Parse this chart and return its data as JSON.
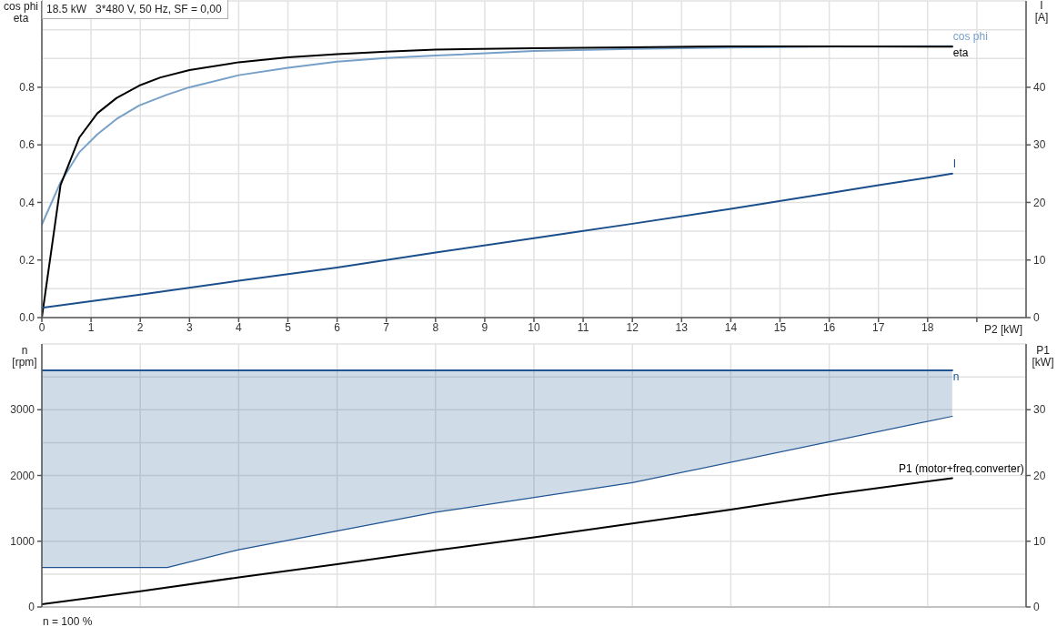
{
  "chart_data": [
    {
      "type": "line",
      "title": "18.5 kW   3*480 V, 50 Hz, SF = 0,00",
      "xlabel": "P2 [kW]",
      "ylabel": "cos phi\neta",
      "y2label": "I\n[A]",
      "xlim": [
        0,
        20
      ],
      "xticks": [
        0,
        1,
        2,
        3,
        4,
        5,
        6,
        7,
        8,
        9,
        10,
        11,
        12,
        13,
        14,
        15,
        16,
        17,
        18,
        {
          "value": 19,
          "label": null
        }
      ],
      "ylim": [
        0,
        1.1
      ],
      "yticks": [
        {
          "value": 0,
          "label": "0.0"
        },
        {
          "value": 0.1,
          "label": null
        },
        0.2,
        {
          "value": 0.3,
          "label": null
        },
        0.4,
        {
          "value": 0.5,
          "label": null
        },
        0.6,
        {
          "value": 0.7,
          "label": null
        },
        0.8,
        {
          "value": 0.9,
          "label": null
        },
        {
          "value": 1.0,
          "label": null
        }
      ],
      "y2lim": [
        0,
        55
      ],
      "y2ticks": [
        0,
        10,
        20,
        30,
        40
      ],
      "grid": true,
      "series": [
        {
          "name": "cos phi",
          "color": "#76a0c8",
          "x": [
            0,
            0.38,
            0.76,
            1.13,
            1.52,
            1.98,
            2.54,
            3,
            4,
            5,
            6,
            7,
            8,
            10,
            12,
            14,
            16,
            18.5
          ],
          "values": [
            0.323,
            0.47,
            0.574,
            0.637,
            0.69,
            0.737,
            0.774,
            0.8,
            0.842,
            0.868,
            0.889,
            0.902,
            0.91,
            0.926,
            0.933,
            0.938,
            0.941,
            0.943
          ]
        },
        {
          "name": "eta",
          "color": "#000000",
          "x": [
            0,
            0.38,
            0.76,
            1.13,
            1.52,
            1.98,
            2.41,
            3,
            4,
            5,
            6,
            7,
            8,
            10,
            12,
            14,
            16,
            18.5
          ],
          "values": [
            0,
            0.46,
            0.625,
            0.71,
            0.763,
            0.806,
            0.834,
            0.86,
            0.887,
            0.904,
            0.915,
            0.924,
            0.931,
            0.936,
            0.939,
            0.942,
            0.942,
            0.941
          ]
        },
        {
          "name": "I",
          "color": "#1b4f8c",
          "axis": "y2",
          "x": [
            0,
            2,
            4,
            6,
            8,
            10,
            12,
            14,
            16,
            17,
            18,
            18.5
          ],
          "values": [
            1.7,
            4,
            6.4,
            8.7,
            11.3,
            13.8,
            16.3,
            18.9,
            21.6,
            23,
            24.3,
            25
          ]
        }
      ]
    },
    {
      "type": "line",
      "ylabel": "n\n[rpm]",
      "y2label": "P1\n[kW]",
      "annotations": [
        "n = 100 %"
      ],
      "xlim": [
        0,
        20
      ],
      "xticks": [
        0,
        2,
        4,
        6,
        8,
        10,
        12,
        14,
        16,
        18
      ],
      "ylim": [
        0,
        4000
      ],
      "yticks": [
        0,
        {
          "value": 500,
          "label": null
        },
        1000,
        {
          "value": 1500,
          "label": null
        },
        2000,
        {
          "value": 2500,
          "label": null
        },
        3000,
        {
          "value": 3500,
          "label": null
        }
      ],
      "y2lim": [
        0,
        40
      ],
      "y2ticks": [
        0,
        10,
        20,
        30
      ],
      "tick_labels": "y",
      "grid": true,
      "series": [
        {
          "name": "n",
          "color": "#1f5592",
          "x": [
            0,
            2.55,
            4,
            8,
            12,
            18.5
          ],
          "values": [
            3600,
            3600,
            3600,
            3600,
            3600,
            3600
          ],
          "lower": [
            600,
            600,
            870,
            1440,
            1890,
            2900
          ],
          "upper": [
            3600,
            3600,
            3600,
            3600,
            3600,
            3600
          ]
        },
        {
          "color": "#1f5592",
          "x": [
            0,
            2.55,
            4,
            8,
            12,
            18.5
          ],
          "values": [
            600,
            600,
            870,
            1440,
            1890,
            2900
          ]
        },
        {
          "name": "P1 (motor+freq.converter)",
          "color": "#000000",
          "axis": "y2",
          "x": [
            0,
            2,
            4,
            6,
            8,
            10,
            12,
            14,
            16,
            18.5
          ],
          "values": [
            0.4,
            2.4,
            4.5,
            6.5,
            8.6,
            10.6,
            12.7,
            14.8,
            17.1,
            19.6
          ]
        }
      ]
    }
  ]
}
